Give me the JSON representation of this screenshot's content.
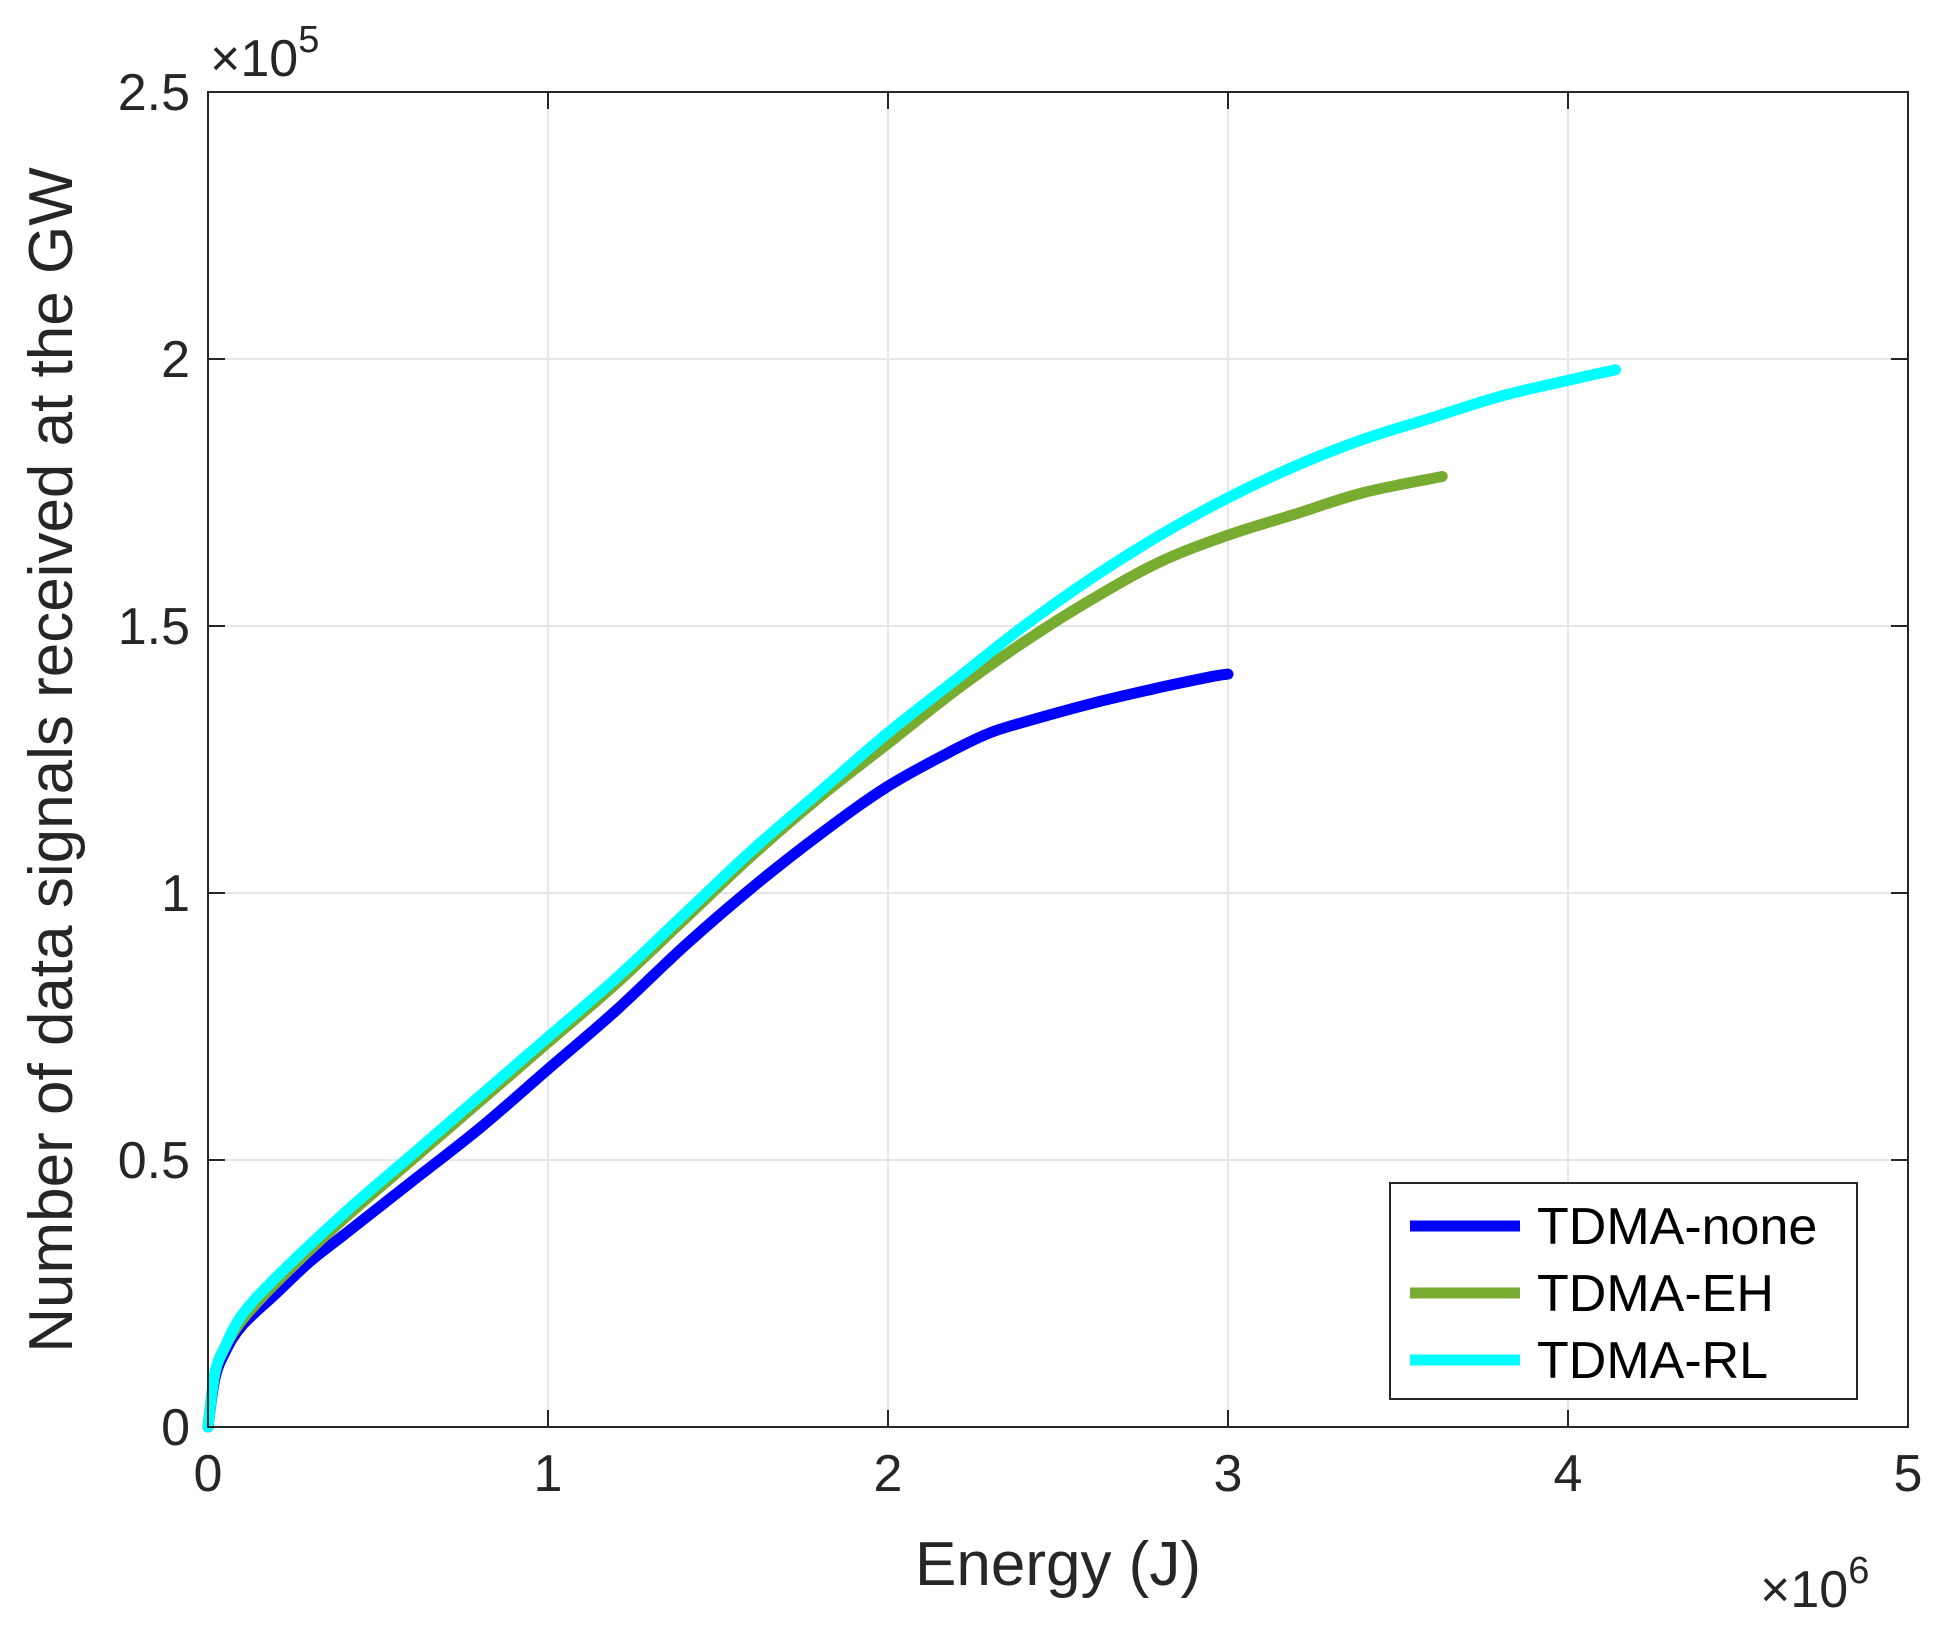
{
  "chart_data": {
    "type": "line",
    "title": "",
    "xlabel": "Energy (J)",
    "ylabel": "Number of data signals received at the GW",
    "x_exponent_label": "×10^6",
    "y_exponent_label": "×10^5",
    "x_exponent": {
      "times": "×",
      "base": "10",
      "power": "6"
    },
    "y_exponent": {
      "times": "×",
      "base": "10",
      "power": "5"
    },
    "xlim": [
      0,
      5
    ],
    "ylim": [
      0,
      2.5
    ],
    "xticks": [
      0,
      1,
      2,
      3,
      4,
      5
    ],
    "yticks": [
      0,
      0.5,
      1,
      1.5,
      2,
      2.5
    ],
    "xtick_labels": [
      "0",
      "1",
      "2",
      "3",
      "4",
      "5"
    ],
    "ytick_labels": [
      "0",
      "0.5",
      "1",
      "1.5",
      "2",
      "2.5"
    ],
    "grid": true,
    "legend_position": "bottom-right",
    "series": [
      {
        "name": "TDMA-none",
        "color": "#0000ff",
        "x": [
          0,
          0.02,
          0.05,
          0.1,
          0.2,
          0.3,
          0.4,
          0.6,
          0.8,
          1.0,
          1.2,
          1.4,
          1.6,
          1.8,
          2.0,
          2.2,
          2.3,
          2.4,
          2.6,
          2.8,
          2.95,
          3.0
        ],
        "y": [
          0,
          0.09,
          0.14,
          0.19,
          0.25,
          0.31,
          0.36,
          0.46,
          0.56,
          0.67,
          0.78,
          0.9,
          1.01,
          1.11,
          1.2,
          1.27,
          1.3,
          1.32,
          1.355,
          1.385,
          1.405,
          1.41
        ]
      },
      {
        "name": "TDMA-EH",
        "color": "#77ac30",
        "x": [
          0,
          0.02,
          0.05,
          0.1,
          0.2,
          0.4,
          0.6,
          0.8,
          1.0,
          1.2,
          1.4,
          1.6,
          1.8,
          2.0,
          2.2,
          2.4,
          2.6,
          2.8,
          3.0,
          3.2,
          3.4,
          3.63
        ],
        "y": [
          0,
          0.1,
          0.15,
          0.2,
          0.27,
          0.39,
          0.5,
          0.61,
          0.72,
          0.83,
          0.95,
          1.07,
          1.18,
          1.28,
          1.38,
          1.47,
          1.55,
          1.62,
          1.67,
          1.71,
          1.75,
          1.78
        ]
      },
      {
        "name": "TDMA-RL",
        "color": "#00ffff",
        "x": [
          0,
          0.02,
          0.05,
          0.1,
          0.2,
          0.4,
          0.6,
          0.8,
          1.0,
          1.2,
          1.4,
          1.6,
          1.8,
          2.0,
          2.2,
          2.4,
          2.6,
          2.8,
          3.0,
          3.2,
          3.4,
          3.6,
          3.8,
          4.0,
          4.14
        ],
        "y": [
          0,
          0.1,
          0.15,
          0.21,
          0.28,
          0.4,
          0.51,
          0.62,
          0.73,
          0.84,
          0.96,
          1.08,
          1.19,
          1.3,
          1.4,
          1.5,
          1.59,
          1.67,
          1.74,
          1.8,
          1.85,
          1.89,
          1.93,
          1.96,
          1.98
        ]
      }
    ]
  }
}
